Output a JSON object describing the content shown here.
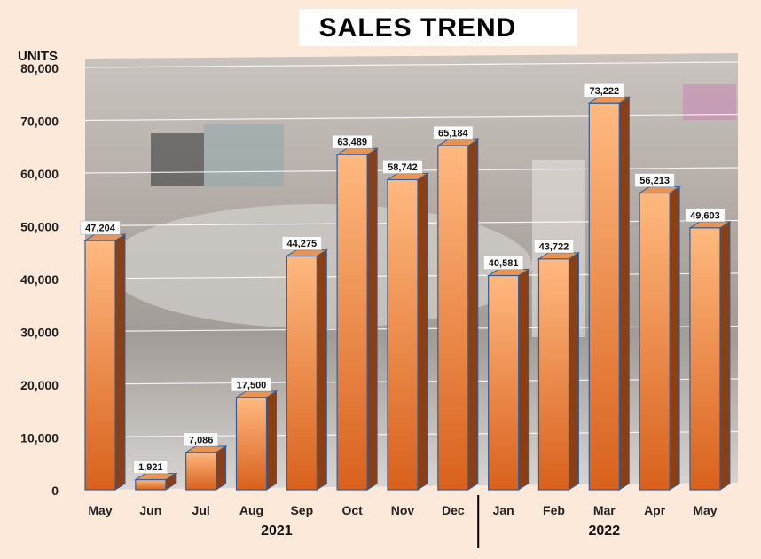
{
  "chart_data": {
    "type": "bar",
    "title": "SALES TREND",
    "ylabel": "UNITS",
    "xlabel": "",
    "ylim": [
      0,
      80000
    ],
    "yticks": [
      "0",
      "10,000",
      "20,000",
      "30,000",
      "40,000",
      "50,000",
      "60,000",
      "70,000",
      "80,000"
    ],
    "grid": true,
    "categories": [
      "May",
      "Jun",
      "Jul",
      "Aug",
      "Sep",
      "Oct",
      "Nov",
      "Dec",
      "Jan",
      "Feb",
      "Mar",
      "Apr",
      "May"
    ],
    "values": [
      47204,
      1921,
      7086,
      17500,
      44275,
      63489,
      58742,
      65184,
      40581,
      43722,
      73222,
      56213,
      49603
    ],
    "value_labels": [
      "47,204",
      "1,921",
      "7,086",
      "17,500",
      "44,275",
      "63,489",
      "58,742",
      "65,184",
      "40,581",
      "43,722",
      "73,222",
      "56,213",
      "49,603"
    ],
    "year_groups": [
      {
        "label": "2021",
        "from": 0,
        "to": 7
      },
      {
        "label": "2022",
        "from": 8,
        "to": 12
      }
    ],
    "colors": {
      "bar_top": "#ffb980",
      "bar_bottom": "#d8611c",
      "bar_side": "#8a3f14",
      "bar_cap": "#e79454",
      "bar_outline": "#2e5fa0",
      "label_bg": "#ffffff",
      "grid": "#ffffff",
      "background": "#fde9d9",
      "year_divider": "#000000"
    }
  }
}
